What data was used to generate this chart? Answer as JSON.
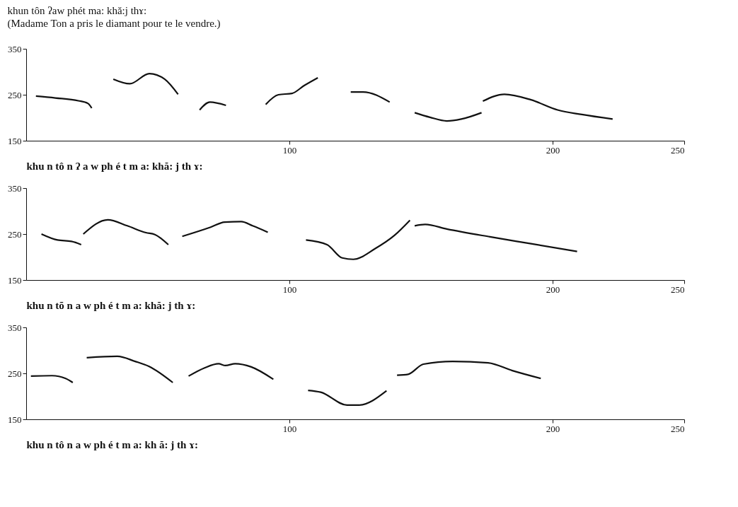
{
  "chart_data": [
    {
      "type": "line",
      "title": "khun tôn ʔaw phét ma: khă:j thɤ:",
      "subtitle": "(Madame Ton a pris le diamant pour te le vendre.)",
      "xlabel": "khu n   tô   n ʔ a w   ph é   t   m a:   khă:   j   th ɤ:",
      "xlim": [
        0,
        250
      ],
      "xticks": [
        100,
        200,
        250
      ],
      "ylim": [
        150,
        350
      ],
      "yticks": [
        150,
        250,
        350
      ],
      "grid": false,
      "x": [
        3.7,
        11.1,
        19.8,
        23.5,
        24.9,
        29,
        33.1,
        39.4,
        46.8,
        52.6,
        57.7,
        62,
        65.9,
        69.8,
        75.9,
        84,
        91,
        95.8,
        101,
        105.6,
        110.8,
        117,
        123.3,
        128,
        138.1,
        143,
        147.6,
        153.4,
        159.8,
        165.3,
        173,
        173.2,
        173.5,
        181.7,
        191.8,
        201.9,
        211.1,
        222.8
      ],
      "series": [
        {
          "color": "#111111",
          "values": [
            247,
            243,
            237,
            231,
            221,
            null,
            284,
            274,
            296,
            284,
            251,
            null,
            217,
            234,
            227,
            null,
            229,
            250,
            253,
            270,
            287,
            null,
            256,
            256,
            234,
            null,
            211,
            201,
            193,
            197,
            211,
            null,
            236,
            251,
            239,
            217,
            207,
            197
          ]
        }
      ]
    },
    {
      "type": "line",
      "xlabel": "khu n  tõ n a   w   ph é t m a:   khă:   j  th  ɤ:",
      "xlim": [
        0,
        250
      ],
      "xticks": [
        100,
        200,
        250
      ],
      "ylim": [
        150,
        350
      ],
      "yticks": [
        150,
        250,
        350
      ],
      "grid": false,
      "x": [
        5.8,
        11.9,
        17.2,
        20.9,
        21.3,
        21.7,
        31,
        38.4,
        45.5,
        48.9,
        54,
        56,
        59.3,
        70.1,
        75.4,
        81.7,
        86,
        91.8,
        99,
        106.3,
        114.3,
        120.1,
        124.3,
        132.5,
        139.9,
        145.8,
        146.7,
        147.6,
        151.6,
        159.8,
        176.2,
        191.8,
        209.3
      ],
      "series": [
        {
          "color": "#111111",
          "values": [
            250,
            237,
            234,
            227,
            null,
            250,
            281,
            268,
            253,
            249,
            227,
            null,
            245,
            265,
            276,
            277,
            268,
            254,
            null,
            237,
            227,
            198,
            195,
            218,
            247,
            280,
            null,
            268,
            271,
            261,
            244,
            229,
            212
          ]
        }
      ]
    },
    {
      "type": "line",
      "xlabel": "khu n  tô  n a w ph é t  m a:  kh ă:   j   th  ɤ:",
      "xlim": [
        0,
        250
      ],
      "xticks": [
        100,
        200,
        250
      ],
      "ylim": [
        150,
        350
      ],
      "yticks": [
        150,
        250,
        350
      ],
      "grid": false,
      "x": [
        1.8,
        9.8,
        15,
        17.7,
        20,
        23,
        34.6,
        41.4,
        46.7,
        55.7,
        58,
        61.7,
        67.8,
        73.1,
        75.7,
        79.4,
        85.5,
        93.9,
        100,
        107.1,
        111.9,
        121.9,
        126.4,
        136.9,
        139,
        140.9,
        145.1,
        150.9,
        162,
        175.5,
        184.7,
        195.5
      ],
      "series": [
        {
          "color": "#111111",
          "values": [
            244,
            245,
            239,
            230,
            null,
            284,
            287,
            276,
            265,
            230,
            null,
            244,
            262,
            271,
            267,
            271,
            264,
            237,
            null,
            213,
            209,
            181,
            181,
            212,
            null,
            246,
            248,
            270,
            276,
            273,
            256,
            239
          ]
        }
      ]
    }
  ]
}
